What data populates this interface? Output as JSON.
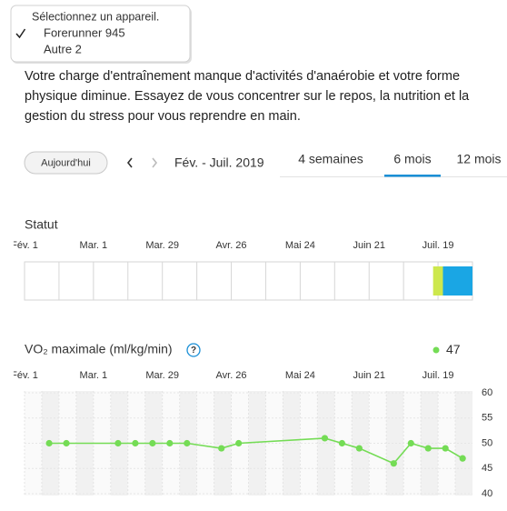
{
  "dropdown": {
    "header": "Sélectionnez un appareil.",
    "items": [
      {
        "label": "Forerunner 945",
        "checked": true
      },
      {
        "label": "Autre 2",
        "checked": false
      }
    ]
  },
  "message": "Votre charge d'entraînement manque d'activités d'anaérobie et votre forme physique diminue. Essayez de vous concentrer sur le repos, la nutrition et la gestion du stress pour vous reprendre en main.",
  "toolbar": {
    "today": "Aujourd'hui",
    "range": "Fév. - Juil. 2019",
    "tabs": [
      {
        "label": "4 semaines",
        "active": false
      },
      {
        "label": "6 mois",
        "active": true
      },
      {
        "label": "12 mois",
        "active": false
      }
    ]
  },
  "chart_data": [
    {
      "type": "timeline",
      "title": "Statut",
      "xlim": [
        0,
        182
      ],
      "xticks": [
        {
          "value": 0,
          "label": "Fév. 1"
        },
        {
          "value": 28,
          "label": "Mar. 1"
        },
        {
          "value": 56,
          "label": "Mar. 29"
        },
        {
          "value": 84,
          "label": "Avr. 26"
        },
        {
          "value": 112,
          "label": "Mai 24"
        },
        {
          "value": 140,
          "label": "Juin 21"
        },
        {
          "value": 168,
          "label": "Juil. 19"
        }
      ],
      "segments": [
        {
          "color": "#cde84d",
          "start": 166,
          "end": 170
        },
        {
          "color": "#1aa6e4",
          "start": 170,
          "end": 182
        }
      ]
    },
    {
      "type": "line",
      "title": "VO₂ maximale (ml/kg/min)",
      "current_value": 47,
      "color": "#74dc55",
      "grid": true,
      "xlim": [
        0,
        182
      ],
      "ylim": [
        40,
        60
      ],
      "yticks": [
        60,
        55,
        50,
        45,
        40
      ],
      "xticks": [
        {
          "value": 0,
          "label": "Fév. 1"
        },
        {
          "value": 28,
          "label": "Mar. 1"
        },
        {
          "value": 56,
          "label": "Mar. 29"
        },
        {
          "value": 84,
          "label": "Avr. 26"
        },
        {
          "value": 112,
          "label": "Mai 24"
        },
        {
          "value": 140,
          "label": "Juin 21"
        },
        {
          "value": 168,
          "label": "Juil. 19"
        }
      ],
      "x": [
        10,
        17,
        38,
        45,
        52,
        59,
        66,
        80,
        87,
        122,
        129,
        136,
        150,
        157,
        164,
        171,
        178
      ],
      "values": [
        50,
        50,
        50,
        50,
        50,
        50,
        50,
        49,
        50,
        51,
        50,
        49,
        46,
        50,
        49,
        49,
        47
      ]
    }
  ]
}
